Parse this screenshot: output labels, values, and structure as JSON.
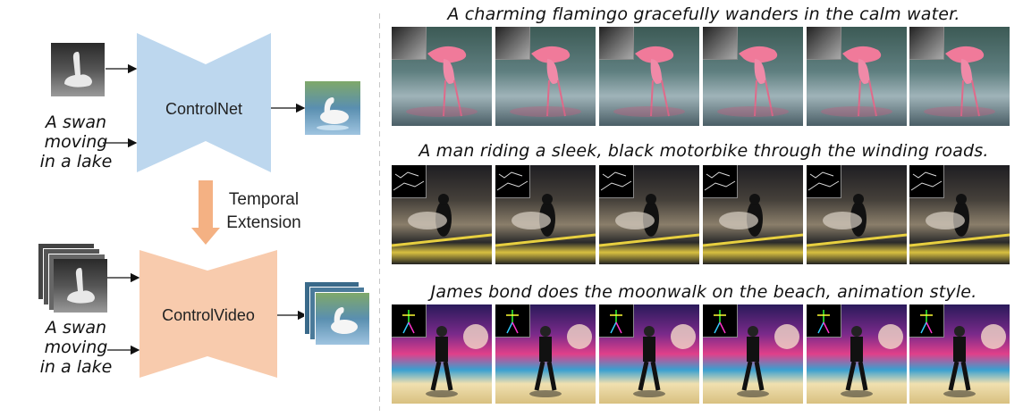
{
  "left_panel": {
    "top_prompt": [
      "A swan",
      "moving",
      "in a lake"
    ],
    "bottom_prompt": [
      "A swan",
      "moving",
      "in a lake"
    ],
    "controlnet_label": "ControlNet",
    "controlvideo_label": "ControlVideo",
    "extension_label": [
      "Temporal",
      "Extension"
    ],
    "colors": {
      "controlnet": "#bdd7ee",
      "controlvideo": "#f8cbad",
      "arrow": "#f4b183"
    }
  },
  "rows": [
    {
      "caption": "A charming flamingo gracefully wanders in the calm water.",
      "control_type": "depth",
      "frames": 6
    },
    {
      "caption": "A man riding a sleek, black motorbike through the winding roads.",
      "control_type": "canny-edge",
      "frames": 6
    },
    {
      "caption": "James bond does the moonwalk on the beach, animation style.",
      "control_type": "pose",
      "frames": 6
    }
  ]
}
